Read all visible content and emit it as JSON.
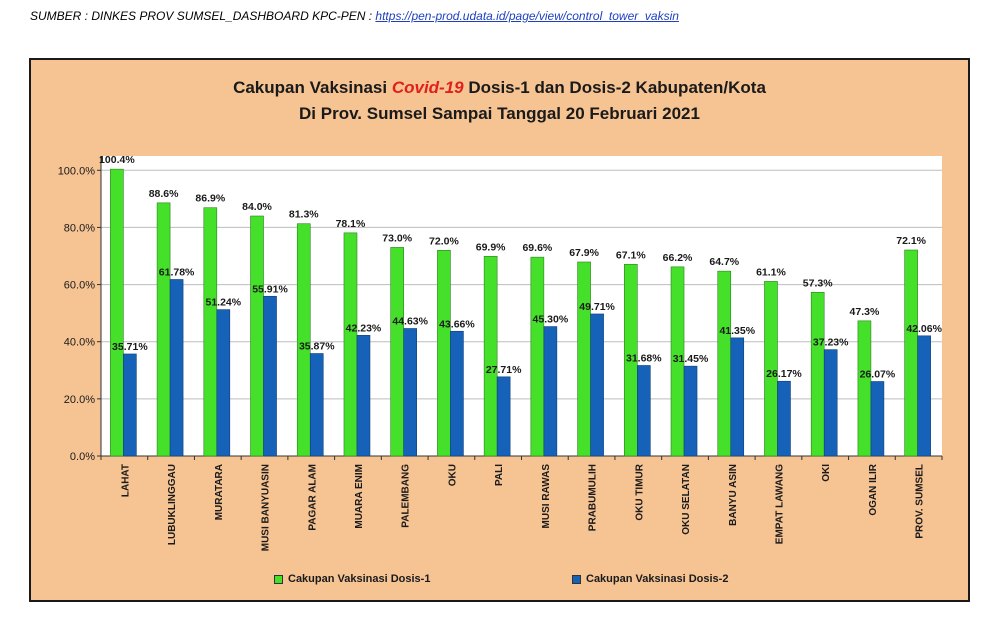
{
  "source": {
    "prefix": "SUMBER : DINKES PROV SUMSEL_DASHBOARD KPC-PEN : ",
    "link": "https://pen-prod.udata.id/page/view/control_tower_vaksin"
  },
  "chart_data": {
    "type": "bar",
    "title": {
      "line1_a": "Cakupan Vaksinasi ",
      "line1_highlight": "Covid-19",
      "line1_b": "  Dosis-1 dan Dosis-2 Kabupaten/Kota",
      "line2": "Di Prov.  Sumsel  Sampai Tanggal 20 Februari 2021"
    },
    "categories": [
      "LAHAT",
      "LUBUKLINGGAU",
      "MURATARA",
      "MUSI BANYUASIN",
      "PAGAR ALAM",
      "MUARA ENIM",
      "PALEMBANG",
      "OKU",
      "PALI",
      "MUSI RAWAS",
      "PRABUMULIH",
      "OKU TIMUR",
      "OKU SELATAN",
      "BANYU ASIN",
      "EMPAT LAWANG",
      "OKI",
      "OGAN ILIR",
      "PROV. SUMSEL"
    ],
    "series": [
      {
        "name": "Cakupan Vaksinasi Dosis-1",
        "color": "#44e02a",
        "values": [
          100.4,
          88.6,
          86.9,
          84.0,
          81.3,
          78.1,
          73.0,
          72.0,
          69.9,
          69.6,
          67.9,
          67.1,
          66.2,
          64.7,
          61.1,
          57.3,
          47.3,
          72.1
        ],
        "labels": [
          "100.4%",
          "88.6%",
          "86.9%",
          "84.0%",
          "81.3%",
          "78.1%",
          "73.0%",
          "72.0%",
          "69.9%",
          "69.6%",
          "67.9%",
          "67.1%",
          "66.2%",
          "64.7%",
          "61.1%",
          "57.3%",
          "47.3%",
          "72.1%"
        ]
      },
      {
        "name": "Cakupan Vaksinasi Dosis-2",
        "color": "#1662b8",
        "values": [
          35.71,
          61.78,
          51.24,
          55.91,
          35.87,
          42.23,
          44.63,
          43.66,
          27.71,
          45.3,
          49.71,
          31.68,
          31.45,
          41.35,
          26.17,
          37.23,
          26.07,
          42.06
        ],
        "labels": [
          "35.71%",
          "61.78%",
          "51.24%",
          "55.91%",
          "35.87%",
          "42.23%",
          "44.63%",
          "43.66%",
          "27.71%",
          "45.30%",
          "49.71%",
          "31.68%",
          "31.45%",
          "41.35%",
          "26.17%",
          "37.23%",
          "26.07%",
          "42.06%"
        ]
      }
    ],
    "yticks": [
      "0.0%",
      "20.0%",
      "40.0%",
      "60.0%",
      "80.0%",
      "100.0%"
    ],
    "ylim": [
      0,
      105
    ],
    "grid": true,
    "legend_position": "bottom"
  }
}
